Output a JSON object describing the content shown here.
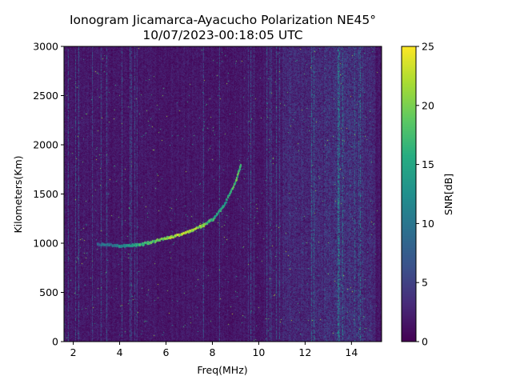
{
  "chart_data": {
    "type": "heatmap",
    "title_lines": [
      "Ionogram Jicamarca-Ayacucho Polarization NE45°",
      "10/07/2023-00:18:05 UTC"
    ],
    "xlabel": "Freq(MHz)",
    "ylabel": "Kilometers(Km)",
    "colorbar_label": "SNR[dB]",
    "colormap": "viridis",
    "xlim": [
      1.6,
      15.3
    ],
    "ylim": [
      0,
      3000
    ],
    "clim": [
      0,
      25
    ],
    "x_ticks": [
      2,
      4,
      6,
      8,
      10,
      12,
      14
    ],
    "y_ticks": [
      0,
      500,
      1000,
      1500,
      2000,
      2500,
      3000
    ],
    "colorbar_ticks": [
      0,
      5,
      10,
      15,
      20,
      25
    ],
    "trace": {
      "description_free": true,
      "freq_mhz": [
        3.0,
        3.5,
        4.0,
        4.5,
        5.0,
        5.5,
        6.0,
        6.5,
        7.0,
        7.5,
        8.0,
        8.5,
        9.0,
        9.2
      ],
      "range_km": [
        1000,
        990,
        980,
        985,
        1000,
        1030,
        1060,
        1090,
        1130,
        1180,
        1250,
        1400,
        1650,
        1800
      ],
      "snr_db": [
        8,
        10,
        12,
        14,
        16,
        18,
        20,
        22,
        22,
        20,
        16,
        14,
        18,
        16
      ]
    }
  }
}
